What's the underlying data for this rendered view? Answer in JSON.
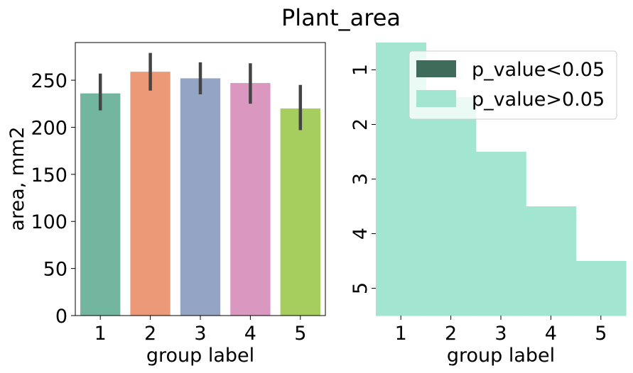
{
  "figure_title": "Plant_area",
  "chart_data": [
    {
      "type": "bar",
      "categories": [
        "1",
        "2",
        "3",
        "4",
        "5"
      ],
      "values": [
        236,
        259,
        252,
        247,
        220
      ],
      "error_low": [
        218,
        239,
        235,
        225,
        197
      ],
      "error_high": [
        257,
        279,
        269,
        268,
        245
      ],
      "colors": [
        "#73b6a0",
        "#eb9977",
        "#93a4c4",
        "#da97c0",
        "#a5ce5e"
      ],
      "title": "",
      "xlabel": "group label",
      "ylabel": "area, mm2",
      "ylim": [
        0,
        290
      ],
      "yticks": [
        0,
        50,
        100,
        150,
        200,
        250
      ]
    },
    {
      "type": "heatmap",
      "xcategories": [
        "1",
        "2",
        "3",
        "4",
        "5"
      ],
      "ycategories": [
        "1",
        "2",
        "3",
        "4",
        "5"
      ],
      "cells": [
        {
          "row": "1",
          "col": "1",
          "class": "p_value>0.05"
        },
        {
          "row": "2",
          "col": "1",
          "class": "p_value>0.05"
        },
        {
          "row": "2",
          "col": "2",
          "class": "p_value>0.05"
        },
        {
          "row": "3",
          "col": "1",
          "class": "p_value>0.05"
        },
        {
          "row": "3",
          "col": "2",
          "class": "p_value>0.05"
        },
        {
          "row": "3",
          "col": "3",
          "class": "p_value>0.05"
        },
        {
          "row": "4",
          "col": "1",
          "class": "p_value>0.05"
        },
        {
          "row": "4",
          "col": "2",
          "class": "p_value>0.05"
        },
        {
          "row": "4",
          "col": "3",
          "class": "p_value>0.05"
        },
        {
          "row": "4",
          "col": "4",
          "class": "p_value>0.05"
        },
        {
          "row": "5",
          "col": "1",
          "class": "p_value>0.05"
        },
        {
          "row": "5",
          "col": "2",
          "class": "p_value>0.05"
        },
        {
          "row": "5",
          "col": "3",
          "class": "p_value>0.05"
        },
        {
          "row": "5",
          "col": "4",
          "class": "p_value>0.05"
        },
        {
          "row": "5",
          "col": "5",
          "class": "p_value>0.05"
        }
      ],
      "legend": [
        {
          "label": "p_value<0.05",
          "color": "#3f6b5a"
        },
        {
          "label": "p_value>0.05",
          "color": "#a2e6d1"
        }
      ],
      "legend_position": "top-right",
      "xlabel": "group label",
      "ylabel": ""
    }
  ]
}
